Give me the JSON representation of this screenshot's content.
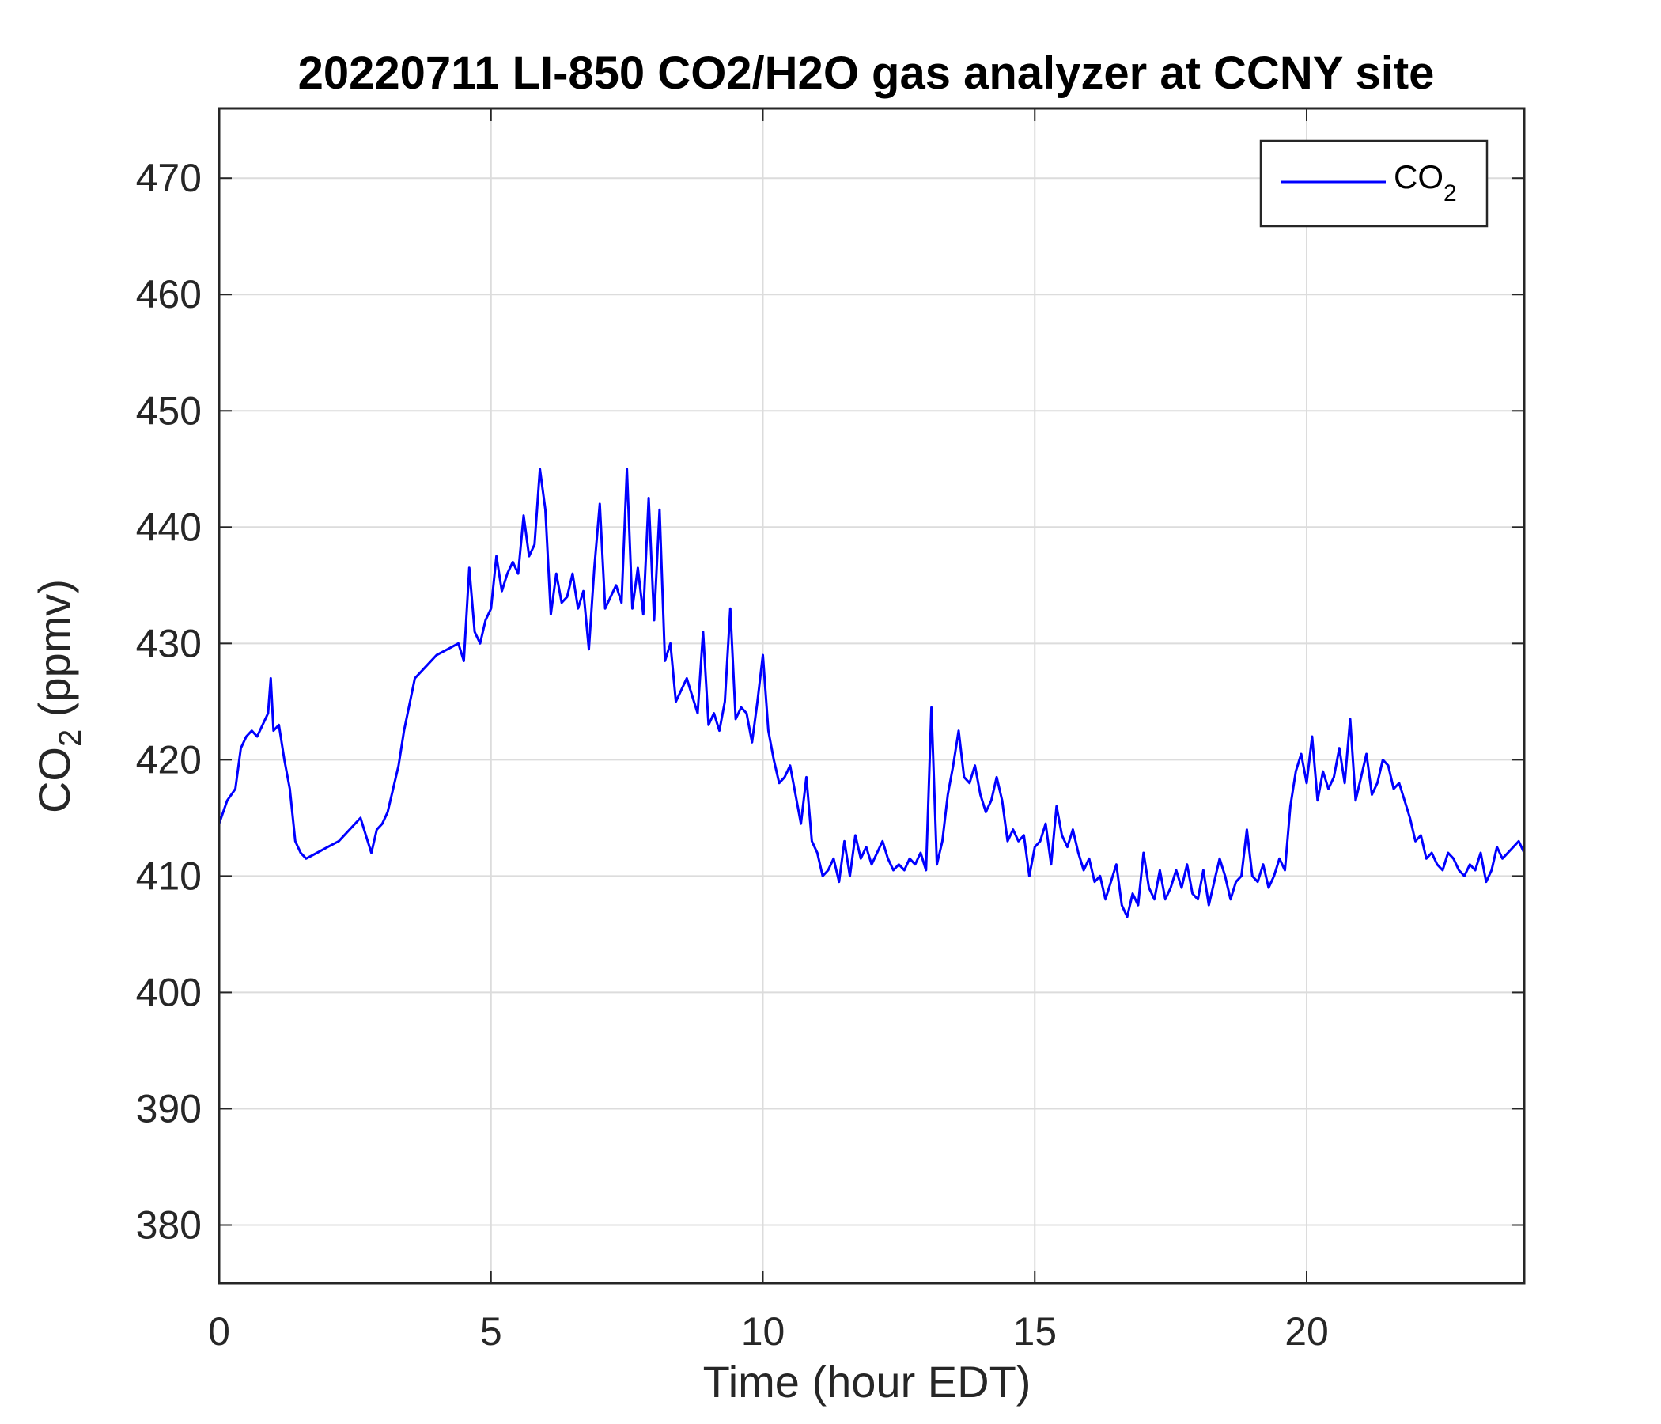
{
  "chart_data": {
    "type": "line",
    "title": "20220711 LI-850 CO2/H2O gas analyzer at CCNY site",
    "xlabel": "Time (hour EDT)",
    "ylabel": {
      "base": "CO",
      "sub": "2",
      "rest": " (ppmv)"
    },
    "xlim": [
      0,
      24
    ],
    "ylim": [
      375,
      476
    ],
    "xticks": [
      0,
      5,
      10,
      15,
      20
    ],
    "yticks": [
      380,
      390,
      400,
      410,
      420,
      430,
      440,
      450,
      460,
      470
    ],
    "grid": true,
    "legend_position": "top-right",
    "series": [
      {
        "name": {
          "base": "CO",
          "sub": "2"
        },
        "color": "#0000ff",
        "x": [
          0.0,
          0.15,
          0.3,
          0.4,
          0.5,
          0.6,
          0.7,
          0.8,
          0.9,
          0.95,
          1.0,
          1.1,
          1.2,
          1.3,
          1.4,
          1.5,
          1.6,
          1.8,
          2.0,
          2.2,
          2.4,
          2.6,
          2.7,
          2.8,
          2.9,
          3.0,
          3.1,
          3.2,
          3.3,
          3.4,
          3.6,
          3.8,
          4.0,
          4.2,
          4.4,
          4.5,
          4.6,
          4.7,
          4.8,
          4.9,
          5.0,
          5.1,
          5.2,
          5.3,
          5.4,
          5.5,
          5.6,
          5.7,
          5.8,
          5.9,
          6.0,
          6.1,
          6.2,
          6.3,
          6.4,
          6.5,
          6.6,
          6.7,
          6.8,
          6.9,
          7.0,
          7.1,
          7.2,
          7.3,
          7.4,
          7.5,
          7.6,
          7.7,
          7.8,
          7.9,
          8.0,
          8.1,
          8.2,
          8.3,
          8.4,
          8.5,
          8.6,
          8.7,
          8.8,
          8.9,
          9.0,
          9.1,
          9.2,
          9.3,
          9.4,
          9.5,
          9.6,
          9.7,
          9.8,
          9.9,
          10.0,
          10.1,
          10.2,
          10.3,
          10.4,
          10.5,
          10.6,
          10.7,
          10.8,
          10.9,
          11.0,
          11.1,
          11.2,
          11.3,
          11.4,
          11.5,
          11.6,
          11.7,
          11.8,
          11.9,
          12.0,
          12.1,
          12.2,
          12.3,
          12.4,
          12.5,
          12.6,
          12.7,
          12.8,
          12.9,
          13.0,
          13.1,
          13.2,
          13.3,
          13.4,
          13.5,
          13.6,
          13.7,
          13.8,
          13.9,
          14.0,
          14.1,
          14.2,
          14.3,
          14.4,
          14.5,
          14.6,
          14.7,
          14.8,
          14.9,
          15.0,
          15.1,
          15.2,
          15.3,
          15.4,
          15.5,
          15.6,
          15.7,
          15.8,
          15.9,
          16.0,
          16.1,
          16.2,
          16.3,
          16.4,
          16.5,
          16.6,
          16.7,
          16.8,
          16.9,
          17.0,
          17.1,
          17.2,
          17.3,
          17.4,
          17.5,
          17.6,
          17.7,
          17.8,
          17.9,
          18.0,
          18.1,
          18.2,
          18.3,
          18.4,
          18.5,
          18.6,
          18.7,
          18.8,
          18.9,
          19.0,
          19.1,
          19.2,
          19.3,
          19.4,
          19.5,
          19.6,
          19.7,
          19.8,
          19.9,
          20.0,
          20.1,
          20.2,
          20.3,
          20.4,
          20.5,
          20.6,
          20.7,
          20.8,
          20.9,
          21.0,
          21.1,
          21.2,
          21.3,
          21.4,
          21.5,
          21.6,
          21.7,
          21.8,
          21.9,
          22.0,
          22.1,
          22.2,
          22.3,
          22.4,
          22.5,
          22.6,
          22.7,
          22.8,
          22.9,
          23.0,
          23.1,
          23.2,
          23.3,
          23.4,
          23.5,
          23.6,
          23.7,
          23.8,
          23.9,
          24.0
        ],
        "y": [
          414.5,
          416.5,
          417.5,
          421.0,
          422.0,
          422.5,
          422.0,
          423.0,
          424.0,
          427.0,
          422.5,
          423.0,
          420.0,
          417.5,
          413.0,
          412.0,
          411.5,
          412.0,
          412.5,
          413.0,
          414.0,
          415.0,
          413.5,
          412.0,
          414.0,
          414.5,
          415.5,
          417.5,
          419.5,
          422.5,
          427.0,
          428.0,
          429.0,
          429.5,
          430.0,
          428.5,
          436.5,
          431.0,
          430.0,
          432.0,
          433.0,
          437.5,
          434.5,
          436.0,
          437.0,
          436.0,
          441.0,
          437.5,
          438.5,
          445.0,
          441.5,
          432.5,
          436.0,
          433.5,
          434.0,
          436.0,
          433.0,
          434.5,
          429.5,
          436.5,
          442.0,
          433.0,
          434.0,
          435.0,
          433.5,
          445.0,
          433.0,
          436.5,
          432.5,
          442.5,
          432.0,
          441.5,
          428.5,
          430.0,
          425.0,
          426.0,
          427.0,
          425.5,
          424.0,
          431.0,
          423.0,
          424.0,
          422.5,
          425.0,
          433.0,
          423.5,
          424.5,
          424.0,
          421.5,
          425.0,
          429.0,
          422.5,
          420.0,
          418.0,
          418.5,
          419.5,
          417.0,
          414.5,
          418.5,
          413.0,
          412.0,
          410.0,
          410.5,
          411.5,
          409.5,
          413.0,
          410.0,
          413.5,
          411.5,
          412.5,
          411.0,
          412.0,
          413.0,
          411.5,
          410.5,
          411.0,
          410.5,
          411.5,
          411.0,
          412.0,
          410.5,
          424.5,
          411.0,
          413.0,
          417.0,
          419.5,
          422.5,
          418.5,
          418.0,
          419.5,
          417.0,
          415.5,
          416.5,
          418.5,
          416.5,
          413.0,
          414.0,
          413.0,
          413.5,
          410.0,
          412.5,
          413.0,
          414.5,
          411.0,
          416.0,
          413.5,
          412.5,
          414.0,
          412.0,
          410.5,
          411.5,
          409.5,
          410.0,
          408.0,
          409.5,
          411.0,
          407.5,
          406.5,
          408.5,
          407.5,
          412.0,
          409.0,
          408.0,
          410.5,
          408.0,
          409.0,
          410.5,
          409.0,
          411.0,
          408.5,
          408.0,
          410.5,
          407.5,
          409.5,
          411.5,
          410.0,
          408.0,
          409.5,
          410.0,
          414.0,
          410.0,
          409.5,
          411.0,
          409.0,
          410.0,
          411.5,
          410.5,
          416.0,
          419.0,
          420.5,
          418.0,
          422.0,
          416.5,
          419.0,
          417.5,
          418.5,
          421.0,
          418.0,
          423.5,
          416.5,
          418.5,
          420.5,
          417.0,
          418.0,
          420.0,
          419.5,
          417.5,
          418.0,
          416.5,
          415.0,
          413.0,
          413.5,
          411.5,
          412.0,
          411.0,
          410.5,
          412.0,
          411.5,
          410.5,
          410.0,
          411.0,
          410.5,
          412.0,
          409.5,
          410.5,
          412.5,
          411.5,
          412.0,
          412.5,
          413.0,
          412.0
        ]
      }
    ]
  }
}
